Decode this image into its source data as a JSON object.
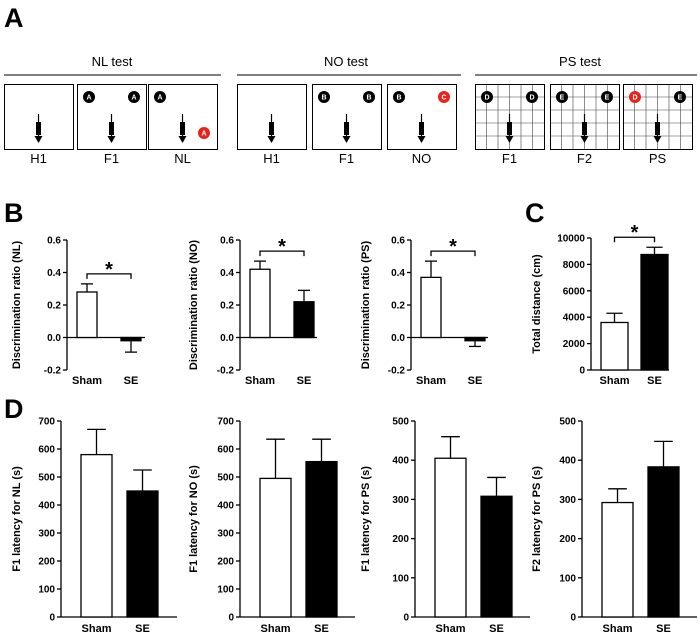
{
  "panel_labels": {
    "a": "A",
    "b": "B",
    "c": "C",
    "d": "D"
  },
  "tests": [
    {
      "title": "NL test",
      "boxes": [
        {
          "label": "H1",
          "grid": false,
          "objects": []
        },
        {
          "label": "F1",
          "grid": false,
          "objects": [
            {
              "letter": "A",
              "pos": "tl",
              "color": "#000000"
            },
            {
              "letter": "A",
              "pos": "tr",
              "color": "#000000"
            }
          ]
        },
        {
          "label": "NL",
          "grid": false,
          "objects": [
            {
              "letter": "A",
              "pos": "tl",
              "color": "#000000"
            },
            {
              "letter": "A",
              "pos": "br",
              "color": "#e8231c"
            }
          ]
        }
      ]
    },
    {
      "title": "NO test",
      "boxes": [
        {
          "label": "H1",
          "grid": false,
          "objects": []
        },
        {
          "label": "F1",
          "grid": false,
          "objects": [
            {
              "letter": "B",
              "pos": "tl",
              "color": "#000000"
            },
            {
              "letter": "B",
              "pos": "tr",
              "color": "#000000"
            }
          ]
        },
        {
          "label": "NO",
          "grid": false,
          "objects": [
            {
              "letter": "B",
              "pos": "tl",
              "color": "#000000"
            },
            {
              "letter": "C",
              "pos": "tr",
              "color": "#e8231c"
            }
          ]
        }
      ]
    },
    {
      "title": "PS test",
      "boxes": [
        {
          "label": "F1",
          "grid": true,
          "objects": [
            {
              "letter": "D",
              "pos": "tl",
              "color": "#000000"
            },
            {
              "letter": "D",
              "pos": "tr",
              "color": "#000000"
            }
          ]
        },
        {
          "label": "F2",
          "grid": true,
          "objects": [
            {
              "letter": "E",
              "pos": "tl",
              "color": "#000000"
            },
            {
              "letter": "E",
              "pos": "tr",
              "color": "#000000"
            }
          ]
        },
        {
          "label": "PS",
          "grid": true,
          "objects": [
            {
              "letter": "D",
              "pos": "tl",
              "color": "#e8231c"
            },
            {
              "letter": "E",
              "pos": "tr",
              "color": "#000000"
            }
          ]
        }
      ]
    }
  ],
  "chart_data": [
    {
      "id": "B1",
      "type": "bar",
      "categories": [
        "Sham",
        "SE"
      ],
      "values": [
        0.28,
        -0.02
      ],
      "errors": [
        0.05,
        0.07
      ],
      "ylabel": "Discrimination ratio (NL)",
      "ylim": [
        -0.2,
        0.6
      ],
      "yticks": [
        "-0.2",
        "0.0",
        "0.2",
        "0.4",
        "0.6"
      ],
      "significance": "*"
    },
    {
      "id": "B2",
      "type": "bar",
      "categories": [
        "Sham",
        "SE"
      ],
      "values": [
        0.42,
        0.22
      ],
      "errors": [
        0.05,
        0.07
      ],
      "ylabel": "Discrimination ratio (NO)",
      "ylim": [
        -0.2,
        0.6
      ],
      "yticks": [
        "-0.2",
        "0.0",
        "0.2",
        "0.4",
        "0.6"
      ],
      "significance": "*"
    },
    {
      "id": "B3",
      "type": "bar",
      "categories": [
        "Sham",
        "SE"
      ],
      "values": [
        0.37,
        -0.02
      ],
      "errors": [
        0.1,
        0.035
      ],
      "ylabel": "Discrimination ratio (PS)",
      "ylim": [
        -0.2,
        0.6
      ],
      "yticks": [
        "-0.2",
        "0.0",
        "0.2",
        "0.4",
        "0.6"
      ],
      "significance": "*"
    },
    {
      "id": "C",
      "type": "bar",
      "categories": [
        "Sham",
        "SE"
      ],
      "values": [
        3600,
        8750
      ],
      "errors": [
        700,
        550
      ],
      "ylabel": "Total distance (cm)",
      "ylim": [
        0,
        10000
      ],
      "yticks": [
        "0",
        "2000",
        "4000",
        "6000",
        "8000",
        "10000"
      ],
      "significance": "*"
    },
    {
      "id": "D1",
      "type": "bar",
      "categories": [
        "Sham",
        "SE"
      ],
      "values": [
        580,
        450
      ],
      "errors": [
        90,
        75
      ],
      "ylabel": "F1 latency for NL (s)",
      "ylim": [
        0,
        700
      ],
      "yticks": [
        "0",
        "100",
        "200",
        "300",
        "400",
        "500",
        "600",
        "700"
      ],
      "significance": ""
    },
    {
      "id": "D2",
      "type": "bar",
      "categories": [
        "Sham",
        "SE"
      ],
      "values": [
        495,
        555
      ],
      "errors": [
        140,
        80
      ],
      "ylabel": "F1 latency for NO (s)",
      "ylim": [
        0,
        700
      ],
      "yticks": [
        "0",
        "100",
        "200",
        "300",
        "400",
        "500",
        "600",
        "700"
      ],
      "significance": ""
    },
    {
      "id": "D3",
      "type": "bar",
      "categories": [
        "Sham",
        "SE"
      ],
      "values": [
        405,
        308
      ],
      "errors": [
        55,
        48
      ],
      "ylabel": "F1 latency for PS (s)",
      "ylim": [
        0,
        500
      ],
      "yticks": [
        "0",
        "100",
        "200",
        "300",
        "400",
        "500"
      ],
      "significance": ""
    },
    {
      "id": "D4",
      "type": "bar",
      "categories": [
        "Sham",
        "SE"
      ],
      "values": [
        292,
        383
      ],
      "errors": [
        35,
        65
      ],
      "ylabel": "F2 latency for PS (s)",
      "ylim": [
        0,
        500
      ],
      "yticks": [
        "0",
        "100",
        "200",
        "300",
        "400",
        "500"
      ],
      "significance": ""
    }
  ]
}
